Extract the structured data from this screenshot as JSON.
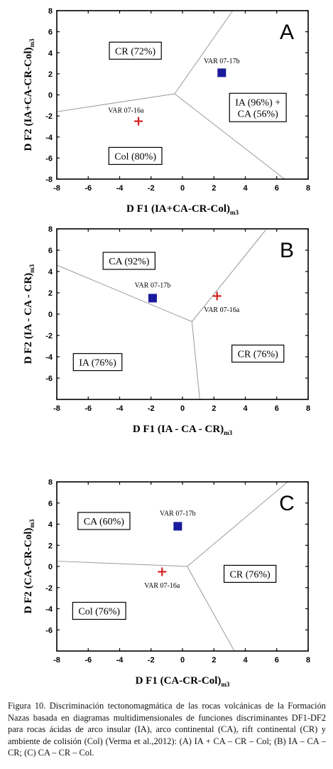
{
  "chart_data": [
    {
      "type": "scatter",
      "panel_letter": "A",
      "xlabel": "D F1 (IA+CA-CR-Col)",
      "xlabel_sub": "m3",
      "ylabel": "D F2 (IA+CA-CR-Col)",
      "ylabel_sub": "m3",
      "xlim": [
        -8,
        8
      ],
      "ylim": [
        -8,
        8
      ],
      "xticks": [
        -8,
        -6,
        -4,
        -2,
        0,
        2,
        4,
        6,
        8
      ],
      "yticks": [
        -8,
        -6,
        -4,
        -2,
        0,
        2,
        4,
        6,
        8
      ],
      "boundaries": [
        [
          [
            -8,
            -1.6
          ],
          [
            -0.5,
            0.1
          ]
        ],
        [
          [
            -0.5,
            0.1
          ],
          [
            3.2,
            8
          ]
        ],
        [
          [
            -0.5,
            0.1
          ],
          [
            6.5,
            -8
          ]
        ]
      ],
      "regions": [
        {
          "label": "CR (72%)",
          "x": -3.0,
          "y": 4.2
        },
        {
          "label": "IA (96%) +\nCA (56%)",
          "x": 4.8,
          "y": -1.2
        },
        {
          "label": "Col (80%)",
          "x": -3.0,
          "y": -5.8
        }
      ],
      "points": [
        {
          "label": "VAR 07-17b",
          "x": 2.5,
          "y": 2.1,
          "marker": "square",
          "color": "#1a1a9c",
          "label_dx": 0,
          "label_dy": 1.1
        },
        {
          "label": "VAR 07-16a",
          "x": -2.8,
          "y": -2.5,
          "marker": "plus",
          "color": "#d42020",
          "label_dx": -0.8,
          "label_dy": 1.0
        }
      ]
    },
    {
      "type": "scatter",
      "panel_letter": "B",
      "xlabel": "D F1 (IA - CA - CR)",
      "xlabel_sub": "m3",
      "ylabel": "D F2 (IA - CA - CR)",
      "ylabel_sub": "m3",
      "xlim": [
        -8,
        8
      ],
      "ylim": [
        -8,
        8
      ],
      "xticks": [
        -8,
        -6,
        -4,
        -2,
        0,
        2,
        4,
        6,
        8
      ],
      "yticks": [
        -6,
        -4,
        -2,
        0,
        2,
        4,
        6,
        8
      ],
      "boundaries": [
        [
          [
            -8,
            4.6
          ],
          [
            0.6,
            -0.7
          ]
        ],
        [
          [
            0.6,
            -0.7
          ],
          [
            5.3,
            7.9
          ]
        ],
        [
          [
            0.6,
            -0.7
          ],
          [
            1.1,
            -8
          ]
        ]
      ],
      "regions": [
        {
          "label": "CA (92%)",
          "x": -3.4,
          "y": 5.0
        },
        {
          "label": "IA (76%)",
          "x": -5.4,
          "y": -4.5
        },
        {
          "label": "CR (76%)",
          "x": 4.8,
          "y": -3.7
        }
      ],
      "points": [
        {
          "label": "VAR 07-17b",
          "x": -1.9,
          "y": 1.5,
          "marker": "square",
          "color": "#1a1a9c",
          "label_dx": 0,
          "label_dy": 1.2
        },
        {
          "label": "VAR 07-16a",
          "x": 2.2,
          "y": 1.7,
          "marker": "plus",
          "color": "#d42020",
          "label_dx": 0.3,
          "label_dy": -1.3
        }
      ]
    },
    {
      "type": "scatter",
      "panel_letter": "C",
      "xlabel": "D F1 (CA-CR-Col)",
      "xlabel_sub": "m3",
      "ylabel": "D F2 (CA-CR-Col)",
      "ylabel_sub": "m3",
      "xlim": [
        -8,
        8
      ],
      "ylim": [
        -8,
        8
      ],
      "xticks": [
        -8,
        -6,
        -4,
        -2,
        0,
        2,
        4,
        6,
        8
      ],
      "yticks": [
        -6,
        -4,
        -2,
        0,
        2,
        4,
        6,
        8
      ],
      "boundaries": [
        [
          [
            -8,
            0.5
          ],
          [
            0.3,
            0.0
          ]
        ],
        [
          [
            0.3,
            0.0
          ],
          [
            6.7,
            8
          ]
        ],
        [
          [
            0.3,
            0.0
          ],
          [
            3.3,
            -8
          ]
        ]
      ],
      "regions": [
        {
          "label": "CA (60%)",
          "x": -5.0,
          "y": 4.3
        },
        {
          "label": "CR (76%)",
          "x": 4.3,
          "y": -0.7
        },
        {
          "label": "Col (76%)",
          "x": -5.3,
          "y": -4.2
        }
      ],
      "points": [
        {
          "label": "VAR 07-17b",
          "x": -0.3,
          "y": 3.8,
          "marker": "square",
          "color": "#1a1a9c",
          "label_dx": 0,
          "label_dy": 1.2
        },
        {
          "label": "VAR 07-16a",
          "x": -1.3,
          "y": -0.5,
          "marker": "plus",
          "color": "#d42020",
          "label_dx": 0,
          "label_dy": -1.3
        }
      ]
    }
  ],
  "caption": "Figura 10. Discriminación tectonomagmática de las rocas volcánicas de la Formación Nazas basada en diagramas multidimensionales de funciones discriminantes DF1-DF2 para rocas ácidas de arco insular (IA), arco continental (CA), rift continental (CR) y ambiente de colisión (Col) (Verma et al.,2012): (A) IA + CA – CR – Col; (B) IA – CA – CR; (C) CA – CR – Col."
}
